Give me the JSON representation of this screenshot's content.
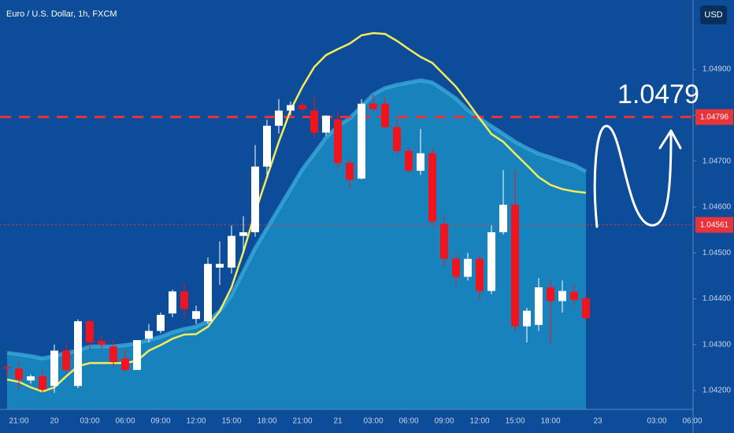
{
  "chart_data": {
    "type": "candlestick",
    "title": "Euro / U.S. Dollar, 1h, FXCM",
    "currency_button": "USD",
    "annotation": "1.0479",
    "categories": [
      null,
      "21:00",
      null,
      null,
      "20",
      null,
      null,
      "03:00",
      null,
      null,
      "06:00",
      null,
      null,
      "09:00",
      null,
      null,
      "12:00",
      null,
      null,
      "15:00",
      null,
      null,
      "18:00",
      null,
      null,
      "21:00",
      null,
      null,
      "21",
      null,
      null,
      "03:00",
      null,
      null,
      "06:00",
      null,
      null,
      "09:00",
      null,
      null,
      "12:00",
      null,
      null,
      "15:00",
      null,
      null,
      "18:00",
      null,
      null,
      null,
      "23",
      null,
      null,
      null,
      null,
      "03:00",
      null,
      null,
      "06:00"
    ],
    "open": [
      1.04251,
      1.04248,
      1.04222,
      1.04231,
      1.0421,
      1.04287,
      1.0421,
      1.04351,
      1.04308,
      1.04296,
      1.0427,
      1.04245,
      1.04313,
      1.0433,
      1.04368,
      1.04416,
      1.04356,
      1.04351,
      1.04468,
      1.04468,
      1.04537,
      1.04545,
      1.04688,
      1.04777,
      1.0481,
      1.04822,
      1.0481,
      1.04762,
      1.04791,
      1.04696,
      1.04662,
      1.04825,
      1.04825,
      1.04774,
      1.04722,
      1.04679,
      1.04717,
      1.04563,
      1.04487,
      1.04448,
      1.04487,
      1.04417,
      1.04545,
      1.04605,
      1.0434,
      1.04343,
      1.04425,
      1.04395,
      1.04415,
      1.04401,
      null,
      null,
      null,
      null,
      null,
      null,
      null,
      null,
      null
    ],
    "high": [
      1.04257,
      1.04262,
      1.04235,
      1.04245,
      1.043,
      1.043,
      1.04355,
      1.04355,
      1.0432,
      1.0431,
      1.0429,
      1.0431,
      1.04345,
      1.0437,
      1.0442,
      1.04435,
      1.04385,
      1.0449,
      1.04525,
      1.0456,
      1.0458,
      1.04735,
      1.0479,
      1.04835,
      1.0483,
      1.0483,
      1.0484,
      1.048,
      1.0481,
      1.04705,
      1.04835,
      1.04845,
      1.0484,
      1.0479,
      1.0473,
      1.0477,
      1.0473,
      1.0458,
      1.045,
      1.045,
      1.04495,
      1.0456,
      1.0468,
      1.0468,
      1.0438,
      1.04445,
      1.0444,
      1.0444,
      1.0443,
      1.0441,
      null,
      null,
      null,
      null,
      null,
      null,
      null,
      null,
      null
    ],
    "low": [
      1.04227,
      1.04202,
      1.04215,
      1.04195,
      1.04195,
      1.04238,
      1.04205,
      1.0429,
      1.0429,
      1.0425,
      1.0424,
      1.04245,
      1.04305,
      1.04325,
      1.0436,
      1.0436,
      1.04345,
      1.04345,
      1.0443,
      1.04455,
      1.045,
      1.04535,
      1.04665,
      1.0476,
      1.048,
      1.04805,
      1.0475,
      1.04755,
      1.04685,
      1.0464,
      1.0466,
      1.04805,
      1.0477,
      1.04715,
      1.04675,
      1.0467,
      1.0456,
      1.0447,
      1.0443,
      1.0444,
      1.044,
      1.0441,
      1.0454,
      1.0433,
      1.04305,
      1.0433,
      1.043,
      1.0437,
      1.04385,
      1.0435,
      null,
      null,
      null,
      null,
      null,
      null,
      null,
      null,
      null
    ],
    "close": [
      1.04248,
      1.04224,
      1.04231,
      1.04202,
      1.04287,
      1.04245,
      1.04351,
      1.04305,
      1.043,
      1.04262,
      1.04245,
      1.0431,
      1.0433,
      1.04365,
      1.04416,
      1.04378,
      1.04373,
      1.04476,
      1.04476,
      1.04537,
      1.04545,
      1.04688,
      1.04777,
      1.0481,
      1.04822,
      1.04813,
      1.04762,
      1.04799,
      1.04696,
      1.04659,
      1.04825,
      1.04813,
      1.04774,
      1.04722,
      1.04679,
      1.04717,
      1.04568,
      1.04487,
      1.04448,
      1.04487,
      1.04417,
      1.04545,
      1.04605,
      1.0434,
      1.04374,
      1.04425,
      1.04395,
      1.04417,
      1.04398,
      1.04358,
      null,
      null,
      null,
      null,
      null,
      null,
      null,
      null,
      null
    ],
    "up_color": "#ffffff",
    "down_color": "#f0141e",
    "area": {
      "color": "#1a8cc2",
      "edge_color": "#3aa8d8",
      "values": [
        1.04282,
        1.04279,
        1.04275,
        1.0427,
        1.04275,
        1.04282,
        1.04287,
        1.04296,
        1.04296,
        1.04296,
        1.04299,
        1.04303,
        1.0431,
        1.04317,
        1.04327,
        1.04334,
        1.04339,
        1.04351,
        1.04373,
        1.04408,
        1.04459,
        1.0451,
        1.04553,
        1.04596,
        1.04639,
        1.04682,
        1.04716,
        1.04751,
        1.04776,
        1.04793,
        1.04819,
        1.04845,
        1.04859,
        1.04866,
        1.04871,
        1.04876,
        1.04871,
        1.04854,
        1.04836,
        1.04811,
        1.04793,
        1.04776,
        1.04759,
        1.04742,
        1.04728,
        1.04716,
        1.04708,
        1.04699,
        1.04691,
        1.04677,
        null,
        null,
        null,
        null,
        null,
        null,
        null,
        null,
        null
      ]
    },
    "line": {
      "color": "#f5ec5a",
      "values": [
        1.04224,
        1.04219,
        1.04207,
        1.04198,
        1.04207,
        1.04231,
        1.04253,
        1.0426,
        1.0426,
        1.0426,
        1.0426,
        1.04265,
        1.04287,
        1.04299,
        1.04313,
        1.04322,
        1.04323,
        1.04339,
        1.04373,
        1.04425,
        1.04502,
        1.04588,
        1.04665,
        1.04742,
        1.04811,
        1.04862,
        1.04905,
        1.04931,
        1.04944,
        1.04956,
        1.04974,
        1.04979,
        1.04977,
        1.04962,
        1.04944,
        1.04927,
        1.04914,
        1.04888,
        1.04862,
        1.04828,
        1.04793,
        1.04759,
        1.04742,
        1.04716,
        1.04691,
        1.04665,
        1.04648,
        1.04639,
        1.04634,
        1.04631,
        null,
        null,
        null,
        null,
        null,
        null,
        null,
        null,
        null
      ]
    },
    "price_lines": [
      {
        "value": 1.04796,
        "color": "#e8333b",
        "style": "dashed"
      },
      {
        "value": 1.04561,
        "color": "#e8333b",
        "style": "dotted"
      }
    ],
    "ylim": [
      1.04159,
      1.05051
    ],
    "yticks": [
      {
        "value": 1.042,
        "label": "1.04200"
      },
      {
        "value": 1.043,
        "label": "1.04300"
      },
      {
        "value": 1.044,
        "label": "1.04400"
      },
      {
        "value": 1.045,
        "label": "1.04500"
      },
      {
        "value": 1.046,
        "label": "1.04600"
      },
      {
        "value": 1.047,
        "label": "1.04700"
      },
      {
        "value": 1.048,
        "label": "1.04800"
      },
      {
        "value": 1.049,
        "label": "1.04900"
      }
    ]
  }
}
